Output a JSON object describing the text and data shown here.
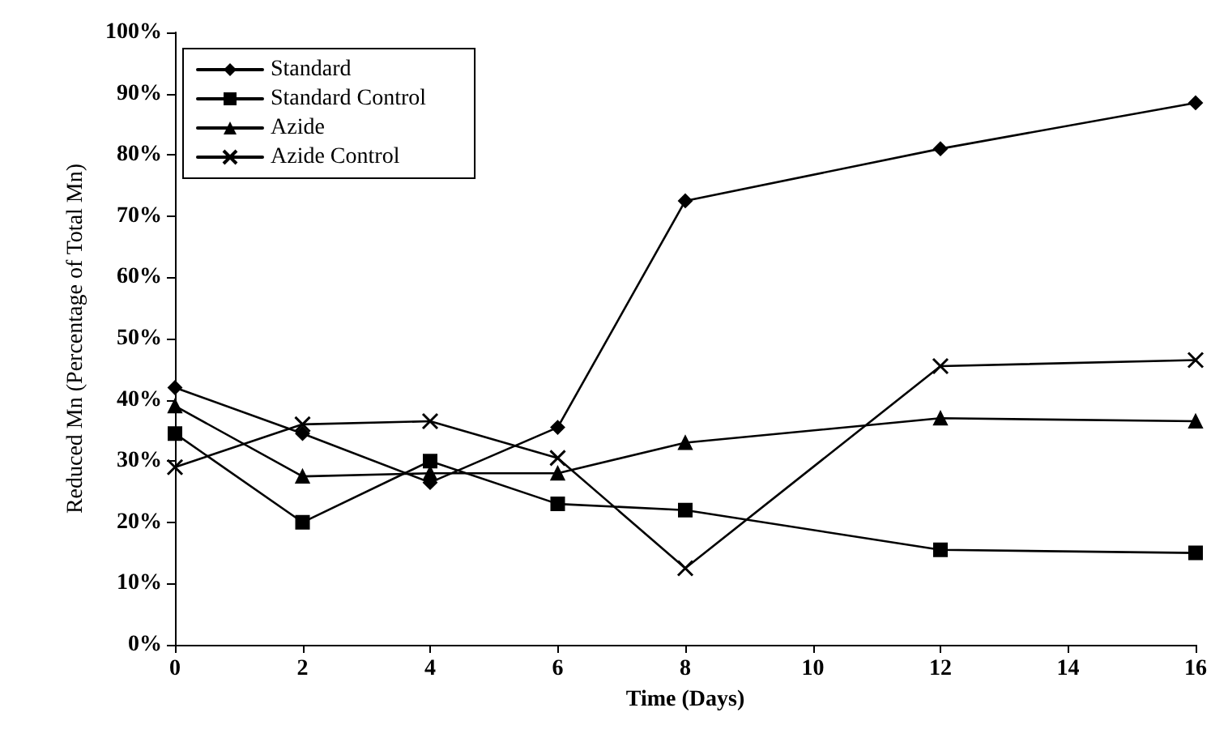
{
  "chart_data": {
    "type": "line",
    "xlabel": "Time (Days)",
    "ylabel": "Reduced Mn (Percentage of Total Mn)",
    "x": [
      0,
      2,
      4,
      6,
      8,
      12,
      16
    ],
    "xlim": [
      0,
      16
    ],
    "xticks": [
      0,
      2,
      4,
      6,
      8,
      10,
      12,
      14,
      16
    ],
    "ylim": [
      0,
      100
    ],
    "yticks": [
      {
        "value": 0,
        "label": "0%"
      },
      {
        "value": 10,
        "label": "10%"
      },
      {
        "value": 20,
        "label": "20%"
      },
      {
        "value": 30,
        "label": "30%"
      },
      {
        "value": 40,
        "label": "40%"
      },
      {
        "value": 50,
        "label": "50%"
      },
      {
        "value": 60,
        "label": "60%"
      },
      {
        "value": 70,
        "label": "70%"
      },
      {
        "value": 80,
        "label": "80%"
      },
      {
        "value": 90,
        "label": "90%"
      },
      {
        "value": 100,
        "label": "100%"
      }
    ],
    "grid": false,
    "legend": "top left",
    "line_style": "solid",
    "series": [
      {
        "name": "Standard",
        "color": "#000000",
        "marker": "diamond",
        "values": [
          42,
          34.5,
          26.5,
          35.5,
          72.5,
          81,
          88.5
        ]
      },
      {
        "name": "Standard Control",
        "color": "#000000",
        "marker": "square",
        "values": [
          34.5,
          20,
          30,
          23,
          22,
          15.5,
          15
        ]
      },
      {
        "name": "Azide",
        "color": "#000000",
        "marker": "triangle",
        "values": [
          39,
          27.5,
          28,
          28,
          33,
          37,
          36.5
        ]
      },
      {
        "name": "Azide Control",
        "color": "#000000",
        "marker": "cross",
        "values": [
          29,
          36,
          36.5,
          30.5,
          12.5,
          45.5,
          46.5
        ]
      }
    ]
  }
}
